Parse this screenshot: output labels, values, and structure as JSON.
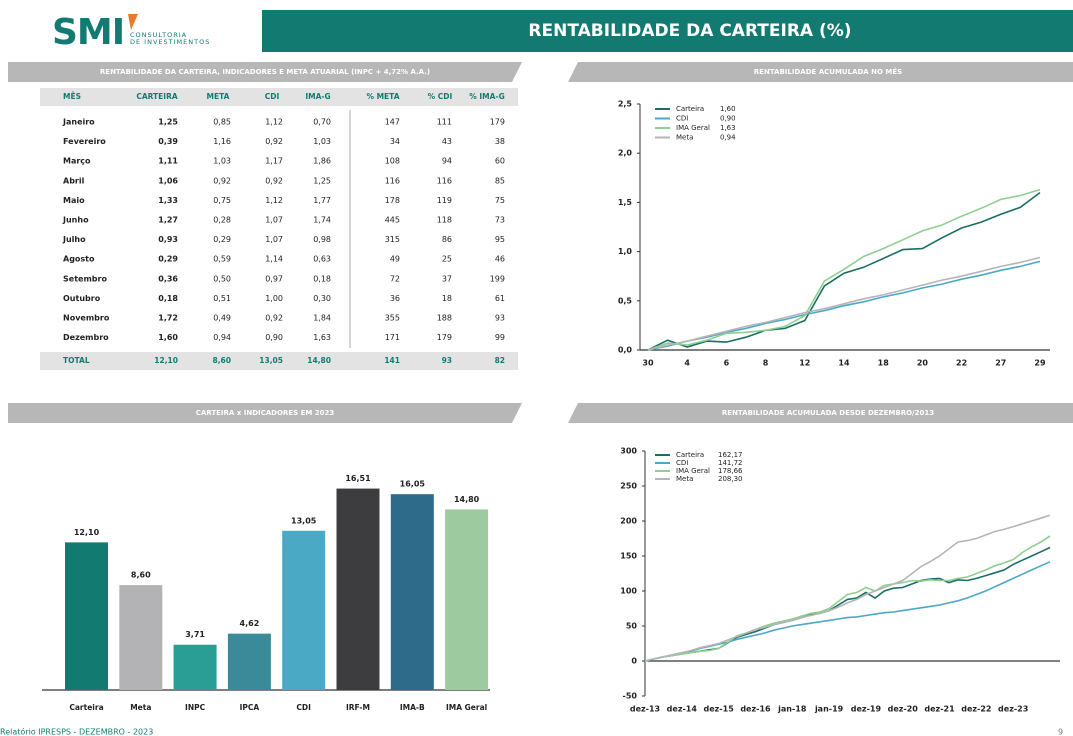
{
  "header": {
    "logo": "SMI",
    "logo_line1": "CONSULTORIA",
    "logo_line2": "DE INVESTIMENTOS",
    "title": "RENTABILIDADE DA CARTEIRA (%)"
  },
  "table": {
    "heading": "RENTABILIDADE DA CARTEIRA, INDICADORES E META ATUARIAL (INPC + 4,72% A.A.)",
    "columns": [
      "MÊS",
      "CARTEIRA",
      "META",
      "CDI",
      "IMA-G",
      "% META",
      "% CDI",
      "% IMA-G"
    ],
    "rows": [
      [
        "Janeiro",
        "1,25",
        "0,85",
        "1,12",
        "0,70",
        "147",
        "111",
        "179"
      ],
      [
        "Fevereiro",
        "0,39",
        "1,16",
        "0,92",
        "1,03",
        "34",
        "43",
        "38"
      ],
      [
        "Março",
        "1,11",
        "1,03",
        "1,17",
        "1,86",
        "108",
        "94",
        "60"
      ],
      [
        "Abril",
        "1,06",
        "0,92",
        "0,92",
        "1,25",
        "116",
        "116",
        "85"
      ],
      [
        "Maio",
        "1,33",
        "0,75",
        "1,12",
        "1,77",
        "178",
        "119",
        "75"
      ],
      [
        "Junho",
        "1,27",
        "0,28",
        "1,07",
        "1,74",
        "445",
        "118",
        "73"
      ],
      [
        "Julho",
        "0,93",
        "0,29",
        "1,07",
        "0,98",
        "315",
        "86",
        "95"
      ],
      [
        "Agosto",
        "0,29",
        "0,59",
        "1,14",
        "0,63",
        "49",
        "25",
        "46"
      ],
      [
        "Setembro",
        "0,36",
        "0,50",
        "0,97",
        "0,18",
        "72",
        "37",
        "199"
      ],
      [
        "Outubro",
        "0,18",
        "0,51",
        "1,00",
        "0,30",
        "36",
        "18",
        "61"
      ],
      [
        "Novembro",
        "1,72",
        "0,49",
        "0,92",
        "1,84",
        "355",
        "188",
        "93"
      ],
      [
        "Dezembro",
        "1,60",
        "0,94",
        "0,90",
        "1,63",
        "171",
        "179",
        "99"
      ]
    ],
    "total": [
      "TOTAL",
      "12,10",
      "8,60",
      "13,05",
      "14,80",
      "141",
      "93",
      "82"
    ]
  },
  "chart_data": [
    {
      "type": "line",
      "title": "RENTABILIDADE ACUMULADA NO MÊS",
      "categories": [
        "30",
        null,
        "4",
        null,
        "6",
        null,
        "8",
        null,
        "12",
        null,
        "14",
        null,
        "18",
        null,
        "20",
        null,
        "22",
        null,
        "27",
        null,
        "29"
      ],
      "ylim": [
        0,
        2.5
      ],
      "yticks": [
        {
          "value": 0,
          "label": "0,0"
        },
        {
          "value": 0.5,
          "label": "0,5"
        },
        {
          "value": 1,
          "label": "1,0"
        },
        {
          "value": 1.5,
          "label": "1,5"
        },
        {
          "value": 2,
          "label": "2,0"
        },
        {
          "value": 2.5,
          "label": "2,5"
        }
      ],
      "series": [
        {
          "name": "Carteira",
          "final_label": "1,60",
          "color": "#1a6e63",
          "values": [
            0,
            0.1,
            0.03,
            0.09,
            0.08,
            0.13,
            0.2,
            0.22,
            0.3,
            0.65,
            0.78,
            0.84,
            0.93,
            1.02,
            1.03,
            1.14,
            1.24,
            1.3,
            1.38,
            1.45,
            1.6
          ]
        },
        {
          "name": "CDI",
          "final_label": "0,90",
          "color": "#4aa8c8",
          "values": [
            0,
            0.04,
            0.09,
            0.13,
            0.18,
            0.22,
            0.27,
            0.31,
            0.36,
            0.4,
            0.45,
            0.49,
            0.54,
            0.58,
            0.63,
            0.67,
            0.72,
            0.76,
            0.81,
            0.85,
            0.9
          ]
        },
        {
          "name": "IMA Geral",
          "final_label": "1,63",
          "color": "#8fcf8f",
          "values": [
            0,
            0.07,
            0.05,
            0.1,
            0.17,
            0.18,
            0.2,
            0.24,
            0.35,
            0.7,
            0.82,
            0.95,
            1.03,
            1.12,
            1.21,
            1.27,
            1.36,
            1.44,
            1.53,
            1.57,
            1.63
          ]
        },
        {
          "name": "Meta",
          "final_label": "0,94",
          "color": "#b5b5b8",
          "values": [
            0,
            0.05,
            0.09,
            0.14,
            0.19,
            0.24,
            0.28,
            0.33,
            0.38,
            0.42,
            0.47,
            0.52,
            0.56,
            0.61,
            0.66,
            0.71,
            0.75,
            0.8,
            0.85,
            0.89,
            0.94
          ]
        }
      ]
    },
    {
      "type": "bar",
      "title": "CARTEIRA x INDICADORES EM 2023",
      "categories": [
        "Carteira",
        "Meta",
        "INPC",
        "IPCA",
        "CDI",
        "IRF-M",
        "IMA-B",
        "IMA Geral"
      ],
      "values": [
        12.1,
        8.6,
        3.71,
        4.62,
        13.05,
        16.51,
        16.05,
        14.8
      ],
      "value_labels": [
        "12,10",
        "8,60",
        "3,71",
        "4,62",
        "13,05",
        "16,51",
        "16,05",
        "14,80"
      ],
      "colors": [
        "#137a72",
        "#b3b3b5",
        "#2a9d95",
        "#3a8a99",
        "#4aaac6",
        "#3d3d40",
        "#2e6a8a",
        "#9dcb9f"
      ]
    },
    {
      "type": "line",
      "title": "RENTABILIDADE ACUMULADA DESDE DEZEMBRO/2013",
      "categories": [
        "dez-13",
        null,
        null,
        null,
        "dez-14",
        null,
        null,
        null,
        "dez-15",
        null,
        null,
        null,
        "dez-16",
        null,
        null,
        null,
        "jan-18",
        null,
        null,
        null,
        "jan-19",
        null,
        null,
        null,
        "dez-19",
        null,
        null,
        null,
        "dez-20",
        null,
        null,
        null,
        "dez-21",
        null,
        null,
        null,
        "dez-22",
        null,
        null,
        null,
        "dez-23",
        null,
        null,
        null,
        null
      ],
      "ylim": [
        -50,
        300
      ],
      "yticks": [
        -50,
        0,
        50,
        100,
        150,
        200,
        250,
        300
      ],
      "series": [
        {
          "name": "Carteira",
          "final_label": "162,17",
          "color": "#1a6e63",
          "values": [
            0,
            3,
            6,
            8,
            10,
            12,
            14,
            16,
            18,
            26,
            34,
            38,
            42,
            47,
            52,
            55,
            58,
            62,
            66,
            68,
            72,
            80,
            88,
            90,
            98,
            90,
            100,
            104,
            105,
            110,
            115,
            117,
            118,
            112,
            116,
            115,
            118,
            122,
            126,
            130,
            138,
            144,
            150,
            156,
            162.17
          ]
        },
        {
          "name": "CDI",
          "final_label": "141,72",
          "color": "#4aa8c8",
          "values": [
            0,
            3,
            6,
            8,
            11,
            14,
            18,
            21,
            24,
            27,
            31,
            34,
            37,
            40,
            44,
            47,
            50,
            52,
            54,
            56,
            58,
            60,
            62,
            63,
            65,
            67,
            69,
            70,
            72,
            74,
            76,
            78,
            80,
            83,
            86,
            90,
            95,
            100,
            106,
            112,
            118,
            124,
            130,
            136,
            141.72
          ]
        },
        {
          "name": "IMA Geral",
          "final_label": "178,66",
          "color": "#8fcf8f",
          "values": [
            0,
            3,
            6,
            8,
            10,
            12,
            14,
            15,
            18,
            27,
            36,
            40,
            45,
            50,
            54,
            57,
            60,
            64,
            68,
            70,
            75,
            85,
            95,
            98,
            105,
            100,
            108,
            110,
            112,
            115,
            114,
            116,
            115,
            115,
            118,
            120,
            125,
            130,
            136,
            140,
            145,
            155,
            163,
            170,
            178.66
          ]
        },
        {
          "name": "Meta",
          "final_label": "208,30",
          "color": "#b5b5b8",
          "values": [
            0,
            3,
            6,
            9,
            12,
            15,
            19,
            22,
            25,
            30,
            35,
            40,
            45,
            48,
            52,
            55,
            58,
            62,
            65,
            68,
            72,
            77,
            83,
            88,
            95,
            100,
            105,
            110,
            115,
            125,
            135,
            142,
            150,
            160,
            170,
            172,
            175,
            180,
            185,
            188,
            192,
            196,
            200,
            204,
            208.3
          ]
        }
      ]
    }
  ],
  "footer": {
    "report": "Relatório IPRESPS - DEZEMBRO - 2023",
    "page": "9"
  }
}
